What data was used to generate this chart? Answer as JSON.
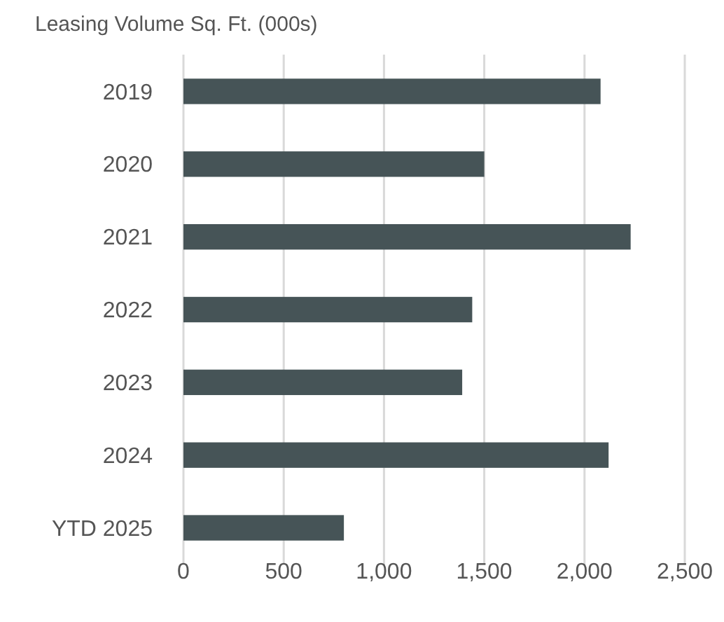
{
  "chart_data": {
    "type": "bar",
    "orientation": "horizontal",
    "title": "Leasing Volume Sq. Ft. (000s)",
    "categories": [
      "2019",
      "2020",
      "2021",
      "2022",
      "2023",
      "2024",
      "YTD 2025"
    ],
    "values": [
      2080,
      1500,
      2230,
      1440,
      1390,
      2120,
      800
    ],
    "color": "#465457",
    "xlim": [
      0,
      2500
    ],
    "xticks": [
      {
        "value": 0,
        "label": "0"
      },
      {
        "value": 500,
        "label": "500"
      },
      {
        "value": 1000,
        "label": "1,000"
      },
      {
        "value": 1500,
        "label": "1,500"
      },
      {
        "value": 2000,
        "label": "2,000"
      },
      {
        "value": 2500,
        "label": "2,500"
      }
    ],
    "grid": "x"
  }
}
